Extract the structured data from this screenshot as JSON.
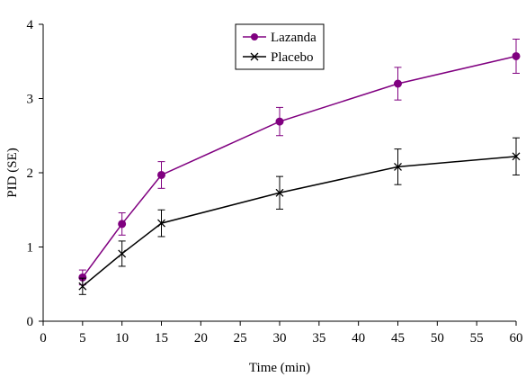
{
  "chart_data": {
    "type": "line",
    "xlabel": "Time (min)",
    "ylabel": "PID (SE)",
    "xlim": [
      0,
      60
    ],
    "ylim": [
      0,
      4
    ],
    "xticks": [
      0,
      5,
      10,
      15,
      20,
      25,
      30,
      35,
      40,
      45,
      50,
      55,
      60
    ],
    "yticks": [
      0,
      1,
      2,
      3,
      4
    ],
    "grid": false,
    "legend_position": "top-center",
    "series": [
      {
        "name": "Lazanda",
        "marker": "circle",
        "color": "#800080",
        "x": [
          5,
          10,
          15,
          30,
          45,
          60
        ],
        "y": [
          0.59,
          1.31,
          1.97,
          2.69,
          3.2,
          3.57
        ],
        "err": [
          0.1,
          0.15,
          0.18,
          0.19,
          0.22,
          0.23
        ]
      },
      {
        "name": "Placebo",
        "marker": "x",
        "color": "#000000",
        "x": [
          5,
          10,
          15,
          30,
          45,
          60
        ],
        "y": [
          0.47,
          0.91,
          1.32,
          1.73,
          2.08,
          2.22
        ],
        "err": [
          0.11,
          0.17,
          0.18,
          0.22,
          0.24,
          0.25
        ]
      }
    ]
  }
}
